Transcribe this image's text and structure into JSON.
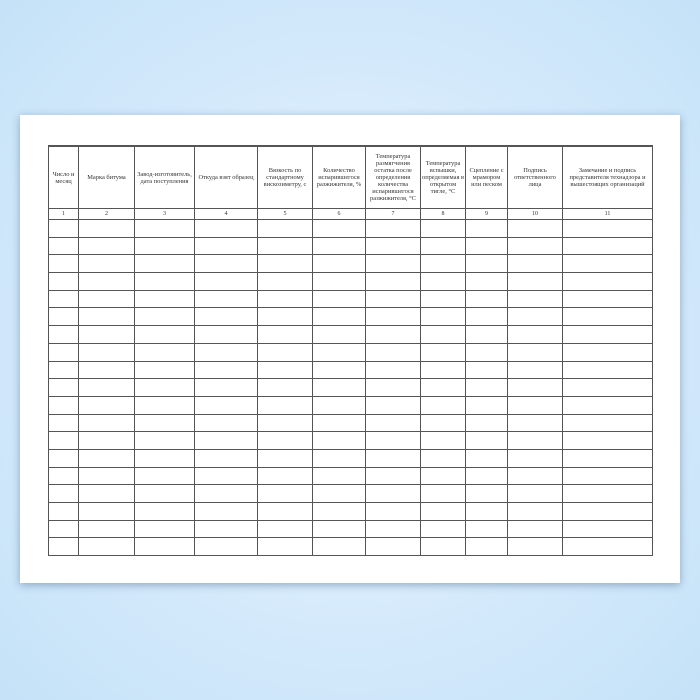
{
  "columns": [
    {
      "header": "Число и месяц",
      "number": "1"
    },
    {
      "header": "Марка битума",
      "number": "2"
    },
    {
      "header": "Завод-изготовитель, дата поступления",
      "number": "3"
    },
    {
      "header": "Откуда взят образец",
      "number": "4"
    },
    {
      "header": "Вязкость по стандартному вискозиметру, с",
      "number": "5"
    },
    {
      "header": "Количество испарившегося разжижителя, %",
      "number": "6"
    },
    {
      "header": "Температура размягчения остатка после определения количества испарившегося разжижителя, °С",
      "number": "7"
    },
    {
      "header": "Температура вспышки, определяемая в открытом тигле, °С",
      "number": "8"
    },
    {
      "header": "Сцепление с мрамором или песком",
      "number": "9"
    },
    {
      "header": "Подпись ответственного лица",
      "number": "10"
    },
    {
      "header": "Замечание и подпись представителя технадзора и вышестоящих организаций",
      "number": "11"
    }
  ],
  "empty_rows": 19
}
